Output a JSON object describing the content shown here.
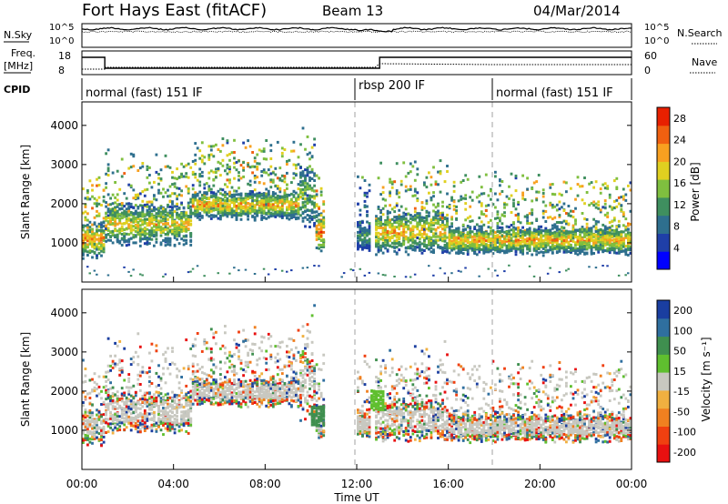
{
  "header": {
    "title": "Fort Hays East (fitACF)",
    "beam": "Beam 13",
    "date": "04/Mar/2014"
  },
  "strip_labels": {
    "nsky": "N.Sky",
    "freq": "Freq.",
    "freq_unit": "[MHz]",
    "cpid": "CPID",
    "nsearch": "N.Search",
    "nave": "Nave",
    "nsky_ticks": [
      "10^5",
      "10^0"
    ],
    "nsearch_ticks": [
      "10^5",
      "10^0"
    ],
    "freq_ticks": [
      "18",
      "8"
    ],
    "nave_ticks": [
      "60",
      "0"
    ]
  },
  "cpid_modes": [
    {
      "label": "normal (fast) 151 IF",
      "start_hour": 0,
      "end_hour": 12
    },
    {
      "label": "rbsp 200 IF",
      "start_hour": 12,
      "end_hour": 18
    },
    {
      "label": "normal (fast) 151 IF",
      "start_hour": 18,
      "end_hour": 24
    }
  ],
  "chart_data": [
    {
      "type": "heatmap",
      "title": "",
      "xlabel": "Time UT",
      "ylabel": "Slant Range [km]",
      "x_ticks": [
        "00:00",
        "04:00",
        "08:00",
        "12:00",
        "16:00",
        "20:00",
        "00:00"
      ],
      "xlim_hours": [
        0,
        24
      ],
      "y_ticks": [
        1000,
        2000,
        3000,
        4000
      ],
      "ylim": [
        0,
        4600
      ],
      "colorbar": {
        "label": "Power [dB]",
        "ticks": [
          4,
          8,
          12,
          16,
          20,
          24,
          28
        ],
        "range": [
          0,
          30
        ],
        "colors": [
          "#0000ff",
          "#1f3fa8",
          "#2e6f8e",
          "#3f8f5f",
          "#7fbf3f",
          "#e0d020",
          "#f8a020",
          "#f06010",
          "#e82000"
        ]
      },
      "echo_bands": [
        {
          "start_hour": 0.0,
          "end_hour": 1.0,
          "center_km": 1100,
          "spread_km": 250,
          "peak_db": 26
        },
        {
          "start_hour": 1.0,
          "end_hour": 4.8,
          "center_km": 1500,
          "spread_km": 300,
          "peak_db": 22
        },
        {
          "start_hour": 4.8,
          "end_hour": 9.5,
          "center_km": 2000,
          "spread_km": 200,
          "peak_db": 24
        },
        {
          "start_hour": 9.5,
          "end_hour": 10.2,
          "center_km": 2200,
          "spread_km": 500,
          "peak_db": 18
        },
        {
          "start_hour": 10.2,
          "end_hour": 10.6,
          "center_km": 1300,
          "spread_km": 300,
          "peak_db": 28
        },
        {
          "start_hour": 12.0,
          "end_hour": 12.6,
          "center_km": 1200,
          "spread_km": 200,
          "peak_db": 14
        },
        {
          "start_hour": 12.8,
          "end_hour": 16.0,
          "center_km": 1300,
          "spread_km": 300,
          "peak_db": 24
        },
        {
          "start_hour": 16.0,
          "end_hour": 24.0,
          "center_km": 1100,
          "spread_km": 200,
          "peak_db": 24
        }
      ]
    },
    {
      "type": "heatmap",
      "title": "",
      "xlabel": "Time UT",
      "ylabel": "Slant Range [km]",
      "x_ticks": [
        "00:00",
        "04:00",
        "08:00",
        "12:00",
        "16:00",
        "20:00",
        "00:00"
      ],
      "xlim_hours": [
        0,
        24
      ],
      "y_ticks": [
        1000,
        2000,
        3000,
        4000
      ],
      "ylim": [
        0,
        4600
      ],
      "colorbar": {
        "label": "Velocity [m s⁻¹]",
        "ticks": [
          200,
          100,
          50,
          15,
          -15,
          -50,
          -100,
          -200
        ],
        "colors": [
          "#1a3ea0",
          "#2f6f9f",
          "#3f8f4f",
          "#5fbf2f",
          "#c8c8c0",
          "#f0b040",
          "#f08020",
          "#f04010",
          "#e81010"
        ]
      },
      "ground_scatter_color": "#c8c8c0",
      "features": [
        {
          "start_hour": 10.0,
          "end_hour": 10.6,
          "center_km": 1400,
          "velocity": 80
        },
        {
          "start_hour": 12.6,
          "end_hour": 13.2,
          "center_km": 1800,
          "velocity": 30
        }
      ]
    }
  ],
  "cpid_boundaries_hours": [
    12,
    18
  ]
}
